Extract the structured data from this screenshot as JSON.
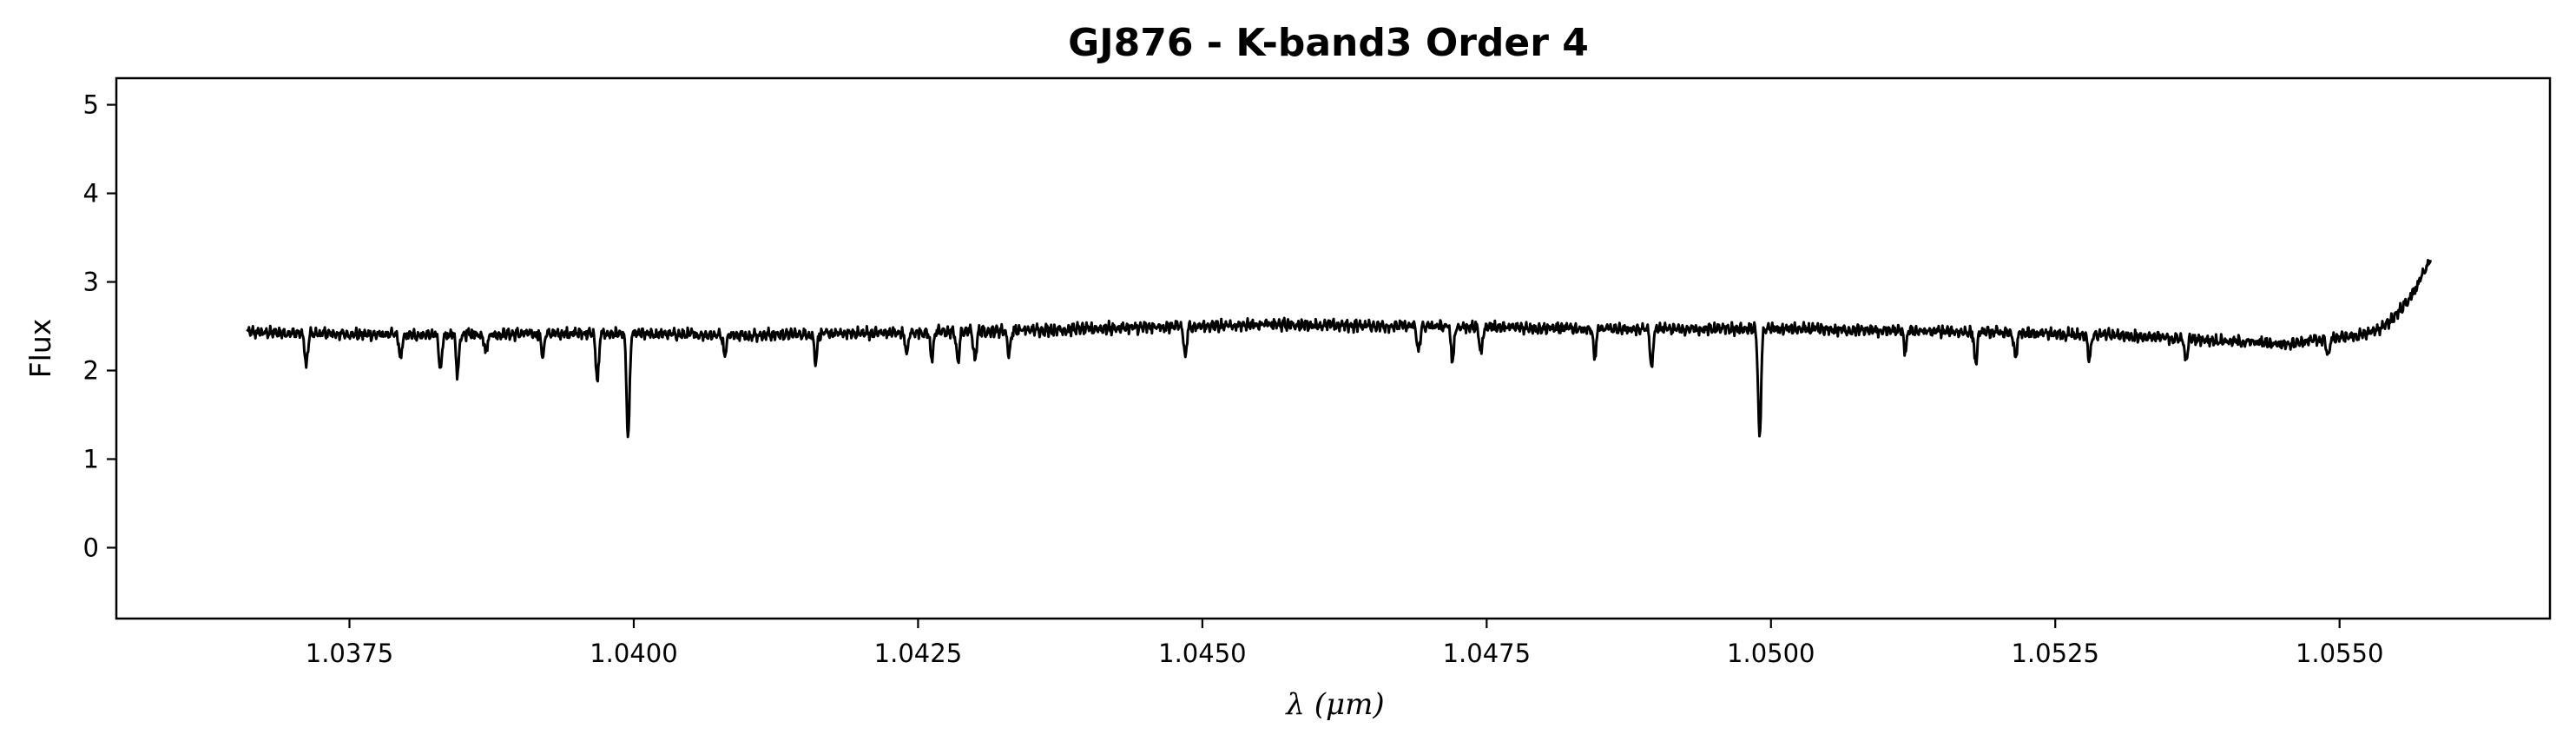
{
  "chart_data": {
    "type": "line",
    "title": "GJ876 - K-band3 Order 4",
    "xlabel": "λ (μm)",
    "ylabel": "Flux",
    "xlim": [
      1.03545,
      1.05685
    ],
    "ylim": [
      -0.8,
      5.3
    ],
    "x_ticks": [
      1.0375,
      1.04,
      1.0425,
      1.045,
      1.0475,
      1.05,
      1.0525,
      1.055
    ],
    "x_tick_labels": [
      "1.0375",
      "1.0400",
      "1.0425",
      "1.0450",
      "1.0475",
      "1.0500",
      "1.0525",
      "1.0550"
    ],
    "y_ticks": [
      0,
      1,
      2,
      3,
      4,
      5
    ],
    "y_tick_labels": [
      "0",
      "1",
      "2",
      "3",
      "4",
      "5"
    ],
    "grid": false,
    "series": [
      {
        "color": "#000000",
        "x_start": 1.0366,
        "x_end": 1.0558,
        "continuum": [
          [
            1.0366,
            2.43
          ],
          [
            1.038,
            2.4
          ],
          [
            1.0395,
            2.42
          ],
          [
            1.041,
            2.4
          ],
          [
            1.0425,
            2.43
          ],
          [
            1.044,
            2.47
          ],
          [
            1.0455,
            2.52
          ],
          [
            1.047,
            2.5
          ],
          [
            1.0485,
            2.47
          ],
          [
            1.05,
            2.47
          ],
          [
            1.0515,
            2.44
          ],
          [
            1.053,
            2.4
          ],
          [
            1.0545,
            2.3
          ],
          [
            1.0552,
            2.4
          ],
          [
            1.0554,
            2.5
          ],
          [
            1.0556,
            2.78
          ],
          [
            1.0557,
            3.0
          ],
          [
            1.0558,
            3.26
          ]
        ],
        "absorption_lines": [
          [
            1.03712,
            0.38
          ],
          [
            1.03795,
            0.27
          ],
          [
            1.0383,
            0.42
          ],
          [
            1.03845,
            0.45
          ],
          [
            1.0387,
            0.2
          ],
          [
            1.0392,
            0.25
          ],
          [
            1.03968,
            0.55
          ],
          [
            1.03995,
            1.2
          ],
          [
            1.0408,
            0.22
          ],
          [
            1.0416,
            0.3
          ],
          [
            1.0424,
            0.25
          ],
          [
            1.04262,
            0.3
          ],
          [
            1.04285,
            0.35
          ],
          [
            1.043,
            0.32
          ],
          [
            1.0433,
            0.28
          ],
          [
            1.04485,
            0.35
          ],
          [
            1.0469,
            0.3
          ],
          [
            1.0472,
            0.38
          ],
          [
            1.04745,
            0.3
          ],
          [
            1.04845,
            0.32
          ],
          [
            1.04895,
            0.45
          ],
          [
            1.0499,
            1.25
          ],
          [
            1.05118,
            0.22
          ],
          [
            1.0518,
            0.35
          ],
          [
            1.05215,
            0.3
          ],
          [
            1.0528,
            0.28
          ],
          [
            1.05365,
            0.25
          ],
          [
            1.0549,
            0.2
          ]
        ]
      }
    ]
  }
}
